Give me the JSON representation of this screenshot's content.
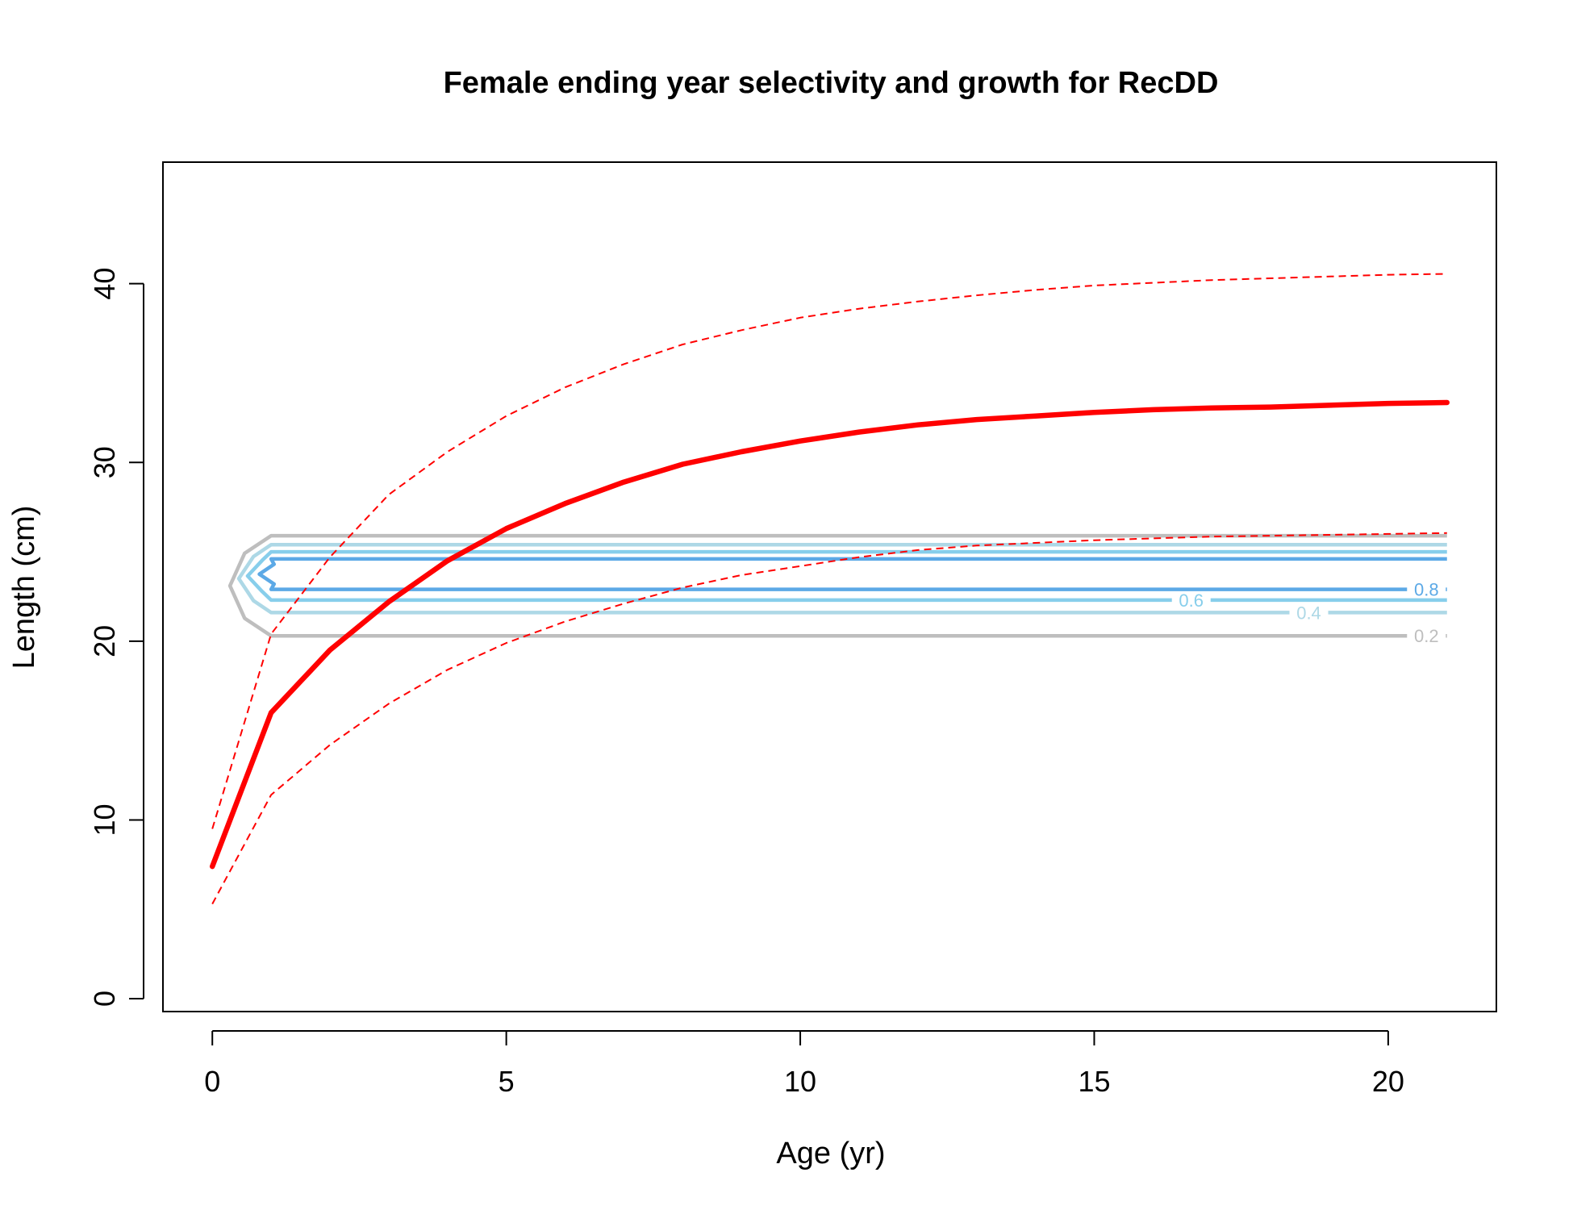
{
  "chart_data": {
    "type": "line",
    "title": "Female ending year selectivity and growth for RecDD",
    "xlabel": "Age (yr)",
    "ylabel": "Length (cm)",
    "xlim": [
      -0.84,
      21.84
    ],
    "ylim": [
      -0.72,
      46.8
    ],
    "xticks": [
      0,
      5,
      10,
      15,
      20
    ],
    "yticks": [
      0,
      10,
      20,
      30,
      40
    ],
    "grid": false,
    "legend": "none",
    "series": [
      {
        "role": "mean",
        "color": "#ff0000",
        "style": "solid-thick",
        "x": [
          0,
          1,
          2,
          3,
          4,
          5,
          6,
          7,
          8,
          9,
          10,
          11,
          12,
          13,
          14,
          15,
          16,
          17,
          18,
          19,
          20,
          21
        ],
        "y": [
          7.4,
          16.0,
          19.5,
          22.2,
          24.5,
          26.3,
          27.7,
          28.9,
          29.9,
          30.6,
          31.2,
          31.7,
          32.1,
          32.4,
          32.6,
          32.8,
          32.95,
          33.05,
          33.1,
          33.2,
          33.3,
          33.35
        ]
      },
      {
        "role": "upper",
        "color": "#ff0000",
        "style": "dashed",
        "x": [
          0,
          1,
          2,
          3,
          4,
          5,
          6,
          7,
          8,
          9,
          10,
          11,
          12,
          13,
          14,
          15,
          16,
          17,
          18,
          19,
          20,
          21
        ],
        "y": [
          9.5,
          20.4,
          24.7,
          28.2,
          30.6,
          32.6,
          34.2,
          35.5,
          36.6,
          37.4,
          38.1,
          38.6,
          39.0,
          39.35,
          39.65,
          39.9,
          40.05,
          40.2,
          40.3,
          40.4,
          40.5,
          40.55
        ]
      },
      {
        "role": "lower",
        "color": "#ff0000",
        "style": "dashed",
        "x": [
          0,
          1,
          2,
          3,
          4,
          5,
          6,
          7,
          8,
          9,
          10,
          11,
          12,
          13,
          14,
          15,
          16,
          17,
          18,
          19,
          20,
          21
        ],
        "y": [
          5.3,
          11.4,
          14.2,
          16.5,
          18.4,
          19.9,
          21.1,
          22.1,
          23.0,
          23.7,
          24.2,
          24.7,
          25.1,
          25.35,
          25.5,
          25.65,
          25.75,
          25.85,
          25.9,
          25.95,
          26.0,
          26.05
        ]
      }
    ],
    "contours": [
      {
        "level": "0.2",
        "color": "#bebebe",
        "ylow": 20.3,
        "yhigh": 25.9,
        "xtip": 0.3,
        "ylabel_at": 20.3,
        "xlabel_at": 20.65
      },
      {
        "level": "0.4",
        "color": "#add8e6",
        "ylow": 21.6,
        "yhigh": 25.4,
        "xtip": 0.45,
        "ylabel_at": 21.6,
        "xlabel_at": 18.65
      },
      {
        "level": "0.6",
        "color": "#87ceeb",
        "ylow": 22.3,
        "yhigh": 25.0,
        "xtip": 0.6,
        "ylabel_at": 22.3,
        "xlabel_at": 16.65
      },
      {
        "level": "0.8",
        "color": "#5ca9e6",
        "ylow": 22.9,
        "yhigh": 24.6,
        "xtip": 0.8,
        "ylabel_at": 22.9,
        "xlabel_at": 20.65
      }
    ]
  }
}
